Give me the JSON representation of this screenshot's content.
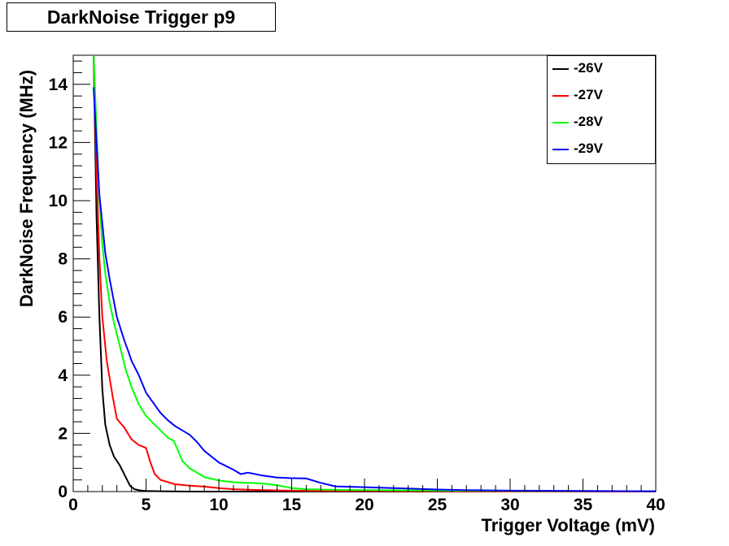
{
  "title": "DarkNoise Trigger p9",
  "chart_data": {
    "type": "line",
    "title": "DarkNoise Trigger p9",
    "xlabel": "Trigger Voltage (mV)",
    "ylabel": "DarkNoise Frequency (MHz)",
    "xlim": [
      0,
      40
    ],
    "ylim": [
      0,
      15
    ],
    "xticks": [
      0,
      5,
      10,
      15,
      20,
      25,
      30,
      35,
      40
    ],
    "yticks": [
      0,
      2,
      4,
      6,
      8,
      10,
      12,
      14
    ],
    "grid": false,
    "legend_position": "top-right",
    "series": [
      {
        "name": "-26V",
        "color": "#000000",
        "x": [
          1.4,
          1.6,
          1.8,
          2.0,
          2.2,
          2.5,
          2.8,
          3.2,
          3.6,
          3.9,
          4.2,
          4.6,
          5.0,
          6.0,
          8.0,
          12.0,
          20.0,
          30.0,
          40.0
        ],
        "y": [
          15.0,
          9.5,
          6.0,
          3.5,
          2.3,
          1.6,
          1.2,
          0.9,
          0.5,
          0.2,
          0.08,
          0.04,
          0.02,
          0.01,
          0.0,
          0.0,
          0.0,
          0.0,
          0.0
        ]
      },
      {
        "name": "-27V",
        "color": "#ff0000",
        "x": [
          1.4,
          1.6,
          1.8,
          2.0,
          2.3,
          2.7,
          3.0,
          3.5,
          4.0,
          4.5,
          5.0,
          5.3,
          5.6,
          6.0,
          7.0,
          8.0,
          9.0,
          10.0,
          11.0,
          13.0,
          15.0,
          18.0,
          25.0,
          30.0,
          40.0
        ],
        "y": [
          15.0,
          11.0,
          8.0,
          6.0,
          4.5,
          3.3,
          2.5,
          2.2,
          1.8,
          1.6,
          1.5,
          1.0,
          0.6,
          0.4,
          0.25,
          0.2,
          0.17,
          0.12,
          0.08,
          0.05,
          0.03,
          0.02,
          0.01,
          0.0,
          0.0
        ]
      },
      {
        "name": "-28V",
        "color": "#00ff00",
        "x": [
          1.4,
          1.6,
          1.8,
          2.0,
          2.2,
          2.5,
          2.8,
          3.0,
          3.2,
          3.4,
          3.6,
          4.0,
          4.5,
          5.0,
          5.5,
          6.0,
          6.5,
          6.9,
          7.2,
          7.5,
          8.0,
          9.0,
          10.0,
          11.0,
          12.0,
          13.0,
          14.0,
          15.0,
          16.0,
          18.0,
          20.0,
          25.0,
          30.0,
          40.0
        ],
        "y": [
          15.0,
          12.5,
          10.0,
          8.5,
          7.5,
          6.5,
          5.8,
          5.4,
          5.0,
          4.6,
          4.2,
          3.6,
          3.0,
          2.6,
          2.35,
          2.1,
          1.85,
          1.75,
          1.4,
          1.05,
          0.8,
          0.5,
          0.38,
          0.32,
          0.3,
          0.28,
          0.22,
          0.12,
          0.08,
          0.06,
          0.05,
          0.03,
          0.02,
          0.01
        ]
      },
      {
        "name": "-29V",
        "color": "#0000ff",
        "x": [
          1.4,
          1.6,
          1.8,
          2.0,
          2.2,
          2.5,
          3.0,
          3.5,
          3.8,
          4.0,
          4.5,
          5.0,
          5.5,
          6.0,
          6.5,
          7.0,
          7.5,
          8.0,
          8.5,
          9.0,
          9.5,
          10.0,
          11.0,
          11.5,
          12.0,
          13.0,
          14.0,
          15.0,
          16.0,
          17.0,
          18.0,
          20.0,
          22.0,
          25.0,
          27.0,
          30.0,
          35.0,
          40.0
        ],
        "y": [
          13.9,
          12.0,
          10.2,
          9.2,
          8.2,
          7.3,
          6.0,
          5.2,
          4.8,
          4.5,
          4.0,
          3.4,
          3.05,
          2.7,
          2.45,
          2.25,
          2.1,
          1.95,
          1.7,
          1.4,
          1.2,
          1.0,
          0.75,
          0.6,
          0.65,
          0.55,
          0.48,
          0.46,
          0.45,
          0.3,
          0.18,
          0.15,
          0.12,
          0.07,
          0.05,
          0.03,
          0.02,
          0.01
        ]
      }
    ]
  }
}
